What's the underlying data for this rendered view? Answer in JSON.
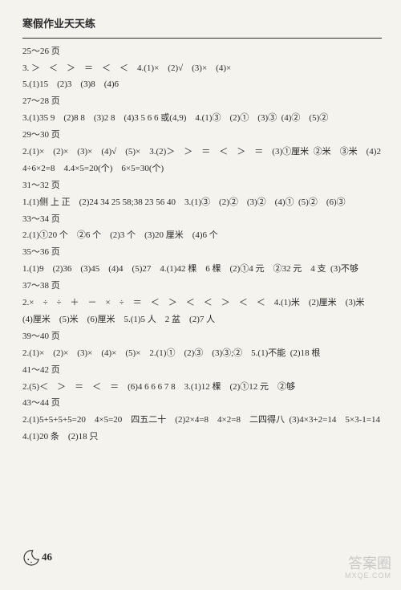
{
  "title": "寒假作业天天练",
  "lines": [
    "25～26 页",
    "3. ＞　＜　＞　＝　＜　＜　4.(1)×　(2)√　(3)×　(4)×",
    "5.(1)15　(2)3　(3)8　(4)6",
    "27～28 页",
    "3.(1)35 9　(2)8 8　(3)2 8　(4)3 5 6 6 或(4,9)　4.(1)③　(2)①　(3)③  (4)②　(5)②",
    "29～30 页",
    "2.(1)×　(2)×　(3)×　(4)√　(5)×　3.(2)＞　＞　＝　＜　＞　＝　(3)①厘米  ②米　③米　(4)24÷6×2=8　4.4×5=20(个)　6×5=30(个)",
    "31～32 页",
    "1.(1)侧 上 正　(2)24 34 25 58;38 23 56 40　3.(1)③　(2)②　(3)②　(4)①  (5)②　(6)③",
    "33～34 页",
    "2.(1)①20 个　②6 个　(2)3 个　(3)20 厘米　(4)6 个",
    "35～36 页",
    "1.(1)9　(2)36　(3)45　(4)4　(5)27　4.(1)42 棵　6 棵　(2)①4 元　②32 元　4 支  (3)不够",
    "37～38 页",
    "2.×　÷　÷　＋　－　×　÷　＝　＜　＞　＜　＜　＞　＜　＜　4.(1)米　(2)厘米　(3)米　(4)厘米　(5)米　(6)厘米　5.(1)5 人　2 盆　(2)7 人",
    "39～40 页",
    "2.(1)×　(2)×　(3)×　(4)×　(5)×　2.(1)①　(2)③　(3)③;②　5.(1)不能  (2)18 根",
    "41～42 页",
    "2.(5)＜　＞　＝　＜　＝　(6)4 6 6 6 7 8　3.(1)12 棵　(2)①12 元　②够",
    "43～44 页",
    "2.(1)5+5+5+5=20　4×5=20　四五二十　(2)2×4=8　4×2=8　二四得八  (3)4×3+2=14　5×3-1=14　4.(1)20 条　(2)18 只"
  ],
  "pageNumber": "46",
  "watermark": {
    "main": "答案圈",
    "sub": "MXQE.COM"
  }
}
